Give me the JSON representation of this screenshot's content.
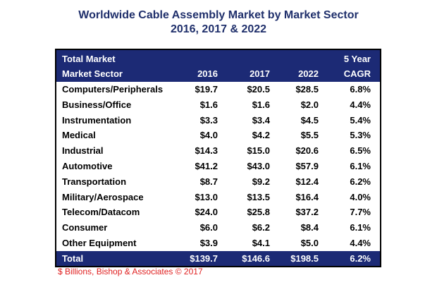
{
  "chart_data": {
    "type": "table",
    "title": "Worldwide Cable Assembly Market by Market Sector",
    "subtitle": "2016, 2017 & 2022",
    "header": {
      "row1_left": "Total Market",
      "row2_left": "Market Sector",
      "years": [
        "2016",
        "2017",
        "2022"
      ],
      "cagr_top": "5 Year",
      "cagr_bottom": "CAGR"
    },
    "rows": [
      {
        "sector": "Computers/Peripherals",
        "y2016": "$19.7",
        "y2017": "$20.5",
        "y2022": "$28.5",
        "cagr": "6.8%"
      },
      {
        "sector": "Business/Office",
        "y2016": "$1.6",
        "y2017": "$1.6",
        "y2022": "$2.0",
        "cagr": "4.4%"
      },
      {
        "sector": "Instrumentation",
        "y2016": "$3.3",
        "y2017": "$3.4",
        "y2022": "$4.5",
        "cagr": "5.4%"
      },
      {
        "sector": "Medical",
        "y2016": "$4.0",
        "y2017": "$4.2",
        "y2022": "$5.5",
        "cagr": "5.3%"
      },
      {
        "sector": "Industrial",
        "y2016": "$14.3",
        "y2017": "$15.0",
        "y2022": "$20.6",
        "cagr": "6.5%"
      },
      {
        "sector": "Automotive",
        "y2016": "$41.2",
        "y2017": "$43.0",
        "y2022": "$57.9",
        "cagr": "6.1%"
      },
      {
        "sector": "Transportation",
        "y2016": "$8.7",
        "y2017": "$9.2",
        "y2022": "$12.4",
        "cagr": "6.2%"
      },
      {
        "sector": "Military/Aerospace",
        "y2016": "$13.0",
        "y2017": "$13.5",
        "y2022": "$16.4",
        "cagr": "4.0%"
      },
      {
        "sector": "Telecom/Datacom",
        "y2016": "$24.0",
        "y2017": "$25.8",
        "y2022": "$37.2",
        "cagr": "7.7%"
      },
      {
        "sector": "Consumer",
        "y2016": "$6.0",
        "y2017": "$6.2",
        "y2022": "$8.4",
        "cagr": "6.1%"
      },
      {
        "sector": "Other Equipment",
        "y2016": "$3.9",
        "y2017": "$4.1",
        "y2022": "$5.0",
        "cagr": "4.4%"
      }
    ],
    "total": {
      "sector": "Total",
      "y2016": "$139.7",
      "y2017": "$146.6",
      "y2022": "$198.5",
      "cagr": "6.2%"
    },
    "source": "$ Billions, Bishop & Associates © 2017"
  },
  "colors": {
    "title": "#1f2f6b",
    "header_bg": "#1c2a75",
    "source": "#e02020"
  }
}
